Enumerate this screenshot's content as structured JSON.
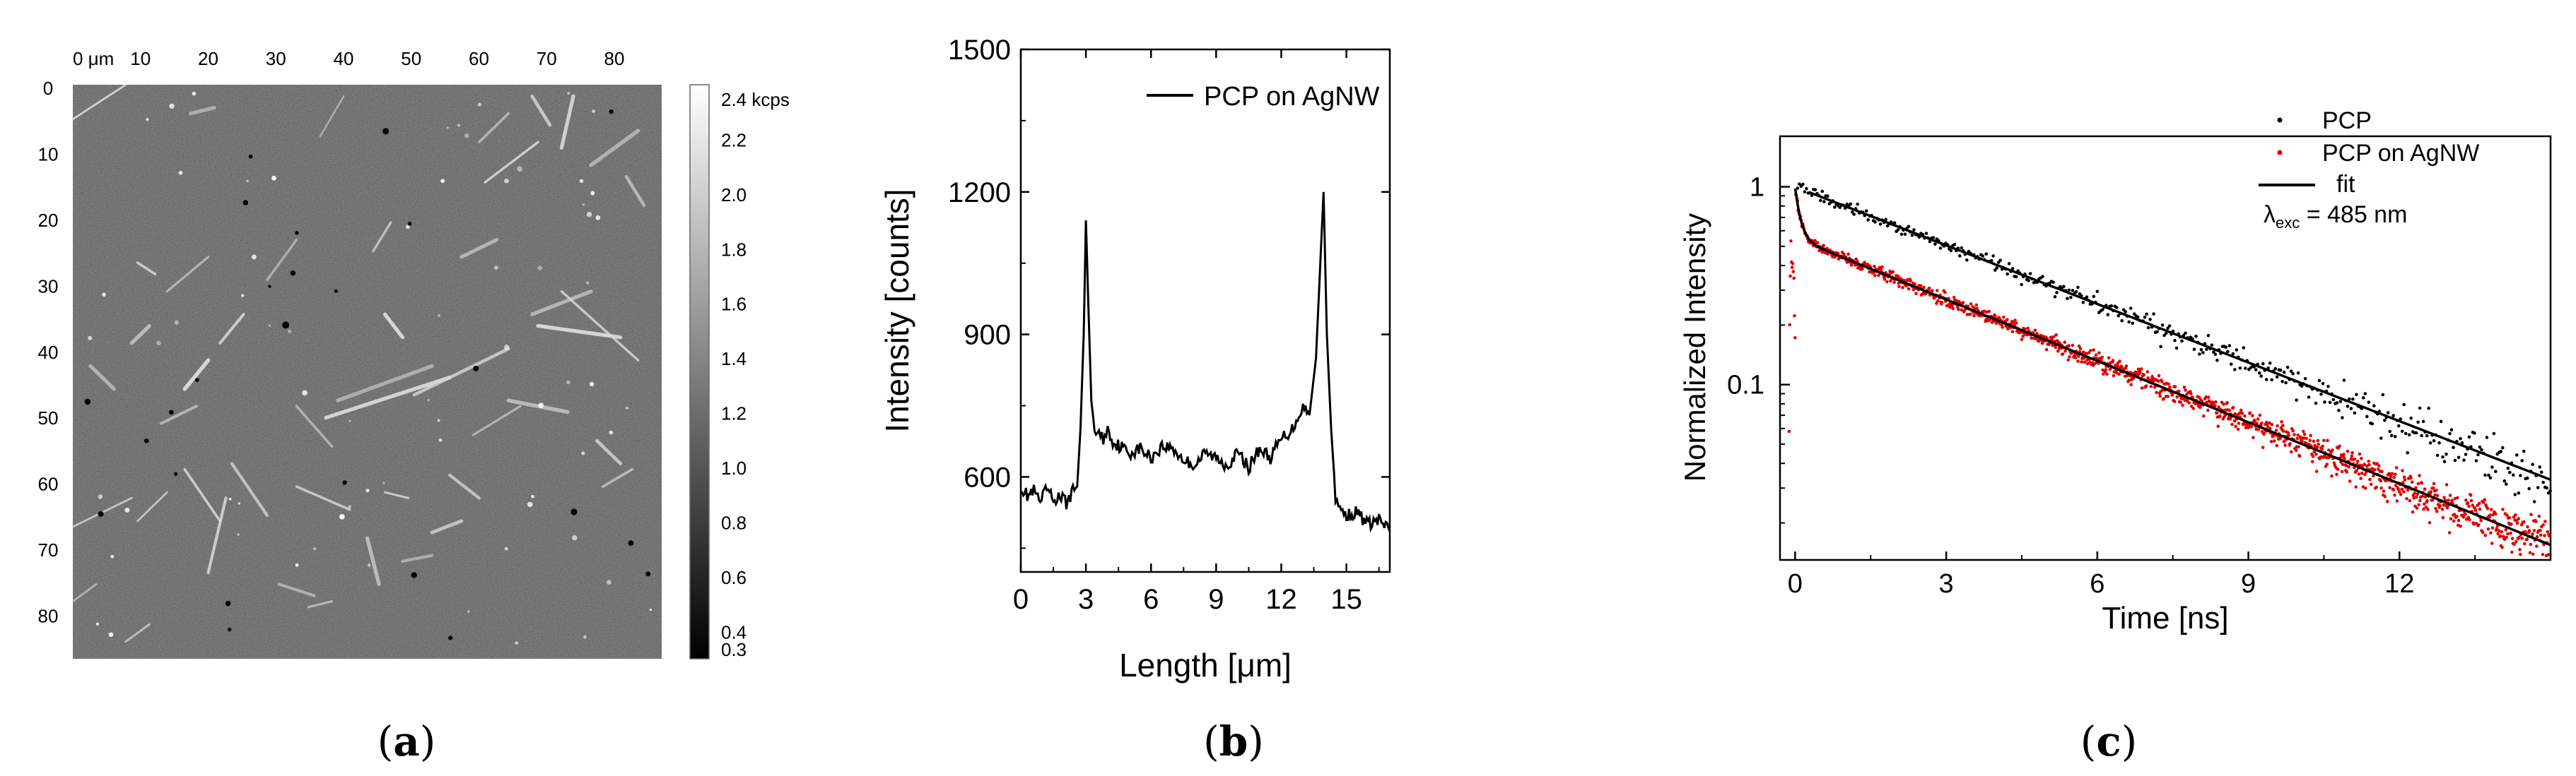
{
  "panel_a": {
    "type": "heatmap",
    "caption": "(a)",
    "x_ticks": [
      "0 μm",
      "10",
      "20",
      "30",
      "40",
      "50",
      "60",
      "70",
      "80"
    ],
    "y_ticks": [
      "0",
      "10",
      "20",
      "30",
      "40",
      "50",
      "60",
      "70",
      "80"
    ],
    "colorbar_ticks": [
      "2.4 kcps",
      "2.2",
      "2.0",
      "1.8",
      "1.6",
      "1.4",
      "1.2",
      "1.0",
      "0.8",
      "0.6",
      "0.4",
      "0.3"
    ],
    "colorbar_range": [
      0.3,
      2.4
    ],
    "colormap": [
      "#000000",
      "#ffffff"
    ],
    "image_range_um": [
      0,
      87
    ]
  },
  "chart_data": [
    {
      "type": "line",
      "panel": "b",
      "caption": "(b)",
      "title": "",
      "xlabel": "Length [μm]",
      "ylabel": "Intensity [counts]",
      "xlim": [
        0,
        17
      ],
      "ylim": [
        400,
        1500
      ],
      "x_ticks": [
        0,
        3,
        6,
        9,
        12,
        15
      ],
      "y_ticks": [
        600,
        900,
        1200,
        1500
      ],
      "legend": "top-center",
      "series": [
        {
          "name": "PCP on AgNW",
          "color": "#000000",
          "x": [
            0,
            0.3,
            0.6,
            0.9,
            1.2,
            1.5,
            1.8,
            2.1,
            2.4,
            2.6,
            2.75,
            2.9,
            3.0,
            3.1,
            3.25,
            3.4,
            3.6,
            3.8,
            4.0,
            4.3,
            4.6,
            5.0,
            5.5,
            6.0,
            6.5,
            7.0,
            7.5,
            8.0,
            8.5,
            9.0,
            9.5,
            10.0,
            10.5,
            11.0,
            11.5,
            12.0,
            12.5,
            13.0,
            13.3,
            13.6,
            13.8,
            13.95,
            14.1,
            14.3,
            14.5,
            14.7,
            15.0,
            15.5,
            16.0,
            16.5,
            17.0
          ],
          "y": [
            580,
            560,
            570,
            545,
            575,
            550,
            560,
            545,
            570,
            580,
            700,
            900,
            1140,
            980,
            760,
            700,
            690,
            680,
            700,
            670,
            665,
            650,
            660,
            640,
            665,
            660,
            635,
            625,
            650,
            640,
            625,
            650,
            620,
            660,
            640,
            680,
            700,
            750,
            730,
            850,
            1050,
            1200,
            900,
            700,
            560,
            530,
            520,
            525,
            500,
            510,
            485
          ]
        }
      ]
    },
    {
      "type": "scatter",
      "panel": "c",
      "caption": "(c)",
      "title": "",
      "xlabel": "Time [ns]",
      "ylabel": "Normalized Intensity",
      "yscale": "log",
      "xlim": [
        -0.3,
        15
      ],
      "ylim": [
        0.013,
        1.8
      ],
      "x_ticks": [
        0,
        3,
        6,
        9,
        12
      ],
      "y_ticks": [
        0.1,
        1
      ],
      "legend": "top-right",
      "annotation": "λexc = 485 nm",
      "series": [
        {
          "name": "PCP",
          "color": "#000000",
          "marker": "dot",
          "tau_ns": 4.4,
          "amplitude": 1.0
        },
        {
          "name": "PCP on AgNW",
          "color": "#e00000",
          "marker": "dot",
          "fast_amplitude": 0.45,
          "fast_tau_ns": 0.1,
          "slow_amplitude": 0.55,
          "slow_tau_ns": 4.2
        },
        {
          "name": "fit",
          "color": "#000000",
          "marker": "line"
        }
      ]
    }
  ]
}
